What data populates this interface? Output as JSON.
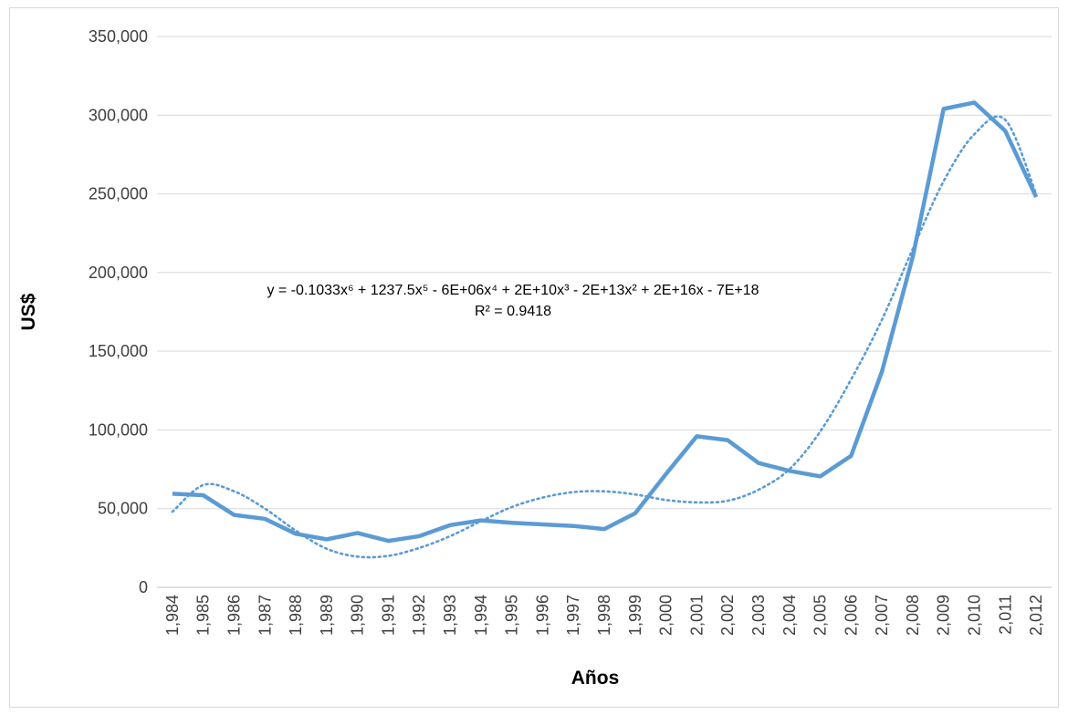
{
  "chart_data": {
    "type": "line",
    "title": "",
    "xlabel": "Años",
    "ylabel": "US$",
    "ylim": [
      0,
      350000
    ],
    "yticks": [
      0,
      50000,
      100000,
      150000,
      200000,
      250000,
      300000,
      350000
    ],
    "ytick_labels": [
      "0",
      "50,000",
      "100,000",
      "150,000",
      "200,000",
      "250,000",
      "300,000",
      "350,000"
    ],
    "categories": [
      "1,984",
      "1,985",
      "1,986",
      "1,987",
      "1,988",
      "1,989",
      "1,990",
      "1,991",
      "1,992",
      "1,993",
      "1,994",
      "1,995",
      "1,996",
      "1,997",
      "1,998",
      "1,999",
      "2,000",
      "2,001",
      "2,002",
      "2,003",
      "2,004",
      "2,005",
      "2,006",
      "2,007",
      "2,008",
      "2,009",
      "2,010",
      "2,011",
      "2,012"
    ],
    "series": [
      {
        "values": [
          59500,
          58500,
          46000,
          43500,
          34000,
          30500,
          34500,
          29500,
          32500,
          39500,
          42500,
          41000,
          40000,
          39000,
          37000,
          47000,
          72000,
          96000,
          93500,
          79000,
          74000,
          70500,
          83500,
          137000,
          210000,
          304000,
          308000,
          290000,
          248000
        ],
        "color": "#5b9bd5",
        "style": "solid"
      }
    ],
    "trendline": {
      "type": "polynomial",
      "order": 6,
      "color": "#5b9bd5",
      "style": "dotted",
      "values": [
        48000,
        65000,
        61000,
        50000,
        36000,
        24500,
        19500,
        20000,
        25000,
        32500,
        42000,
        51000,
        57000,
        60500,
        61000,
        59000,
        55500,
        54000,
        55000,
        62000,
        75000,
        99000,
        132000,
        170000,
        215000,
        258000,
        288000,
        297000,
        250000
      ]
    },
    "equation": {
      "main": "y = -0.1033x⁶ + 1237.5x⁵ - 6E+06x⁴ + 2E+10x³ - 2E+13x² + 2E+16x - 7E+18",
      "r2": "R² = 0.9418"
    },
    "grid": true,
    "legend": "none"
  }
}
